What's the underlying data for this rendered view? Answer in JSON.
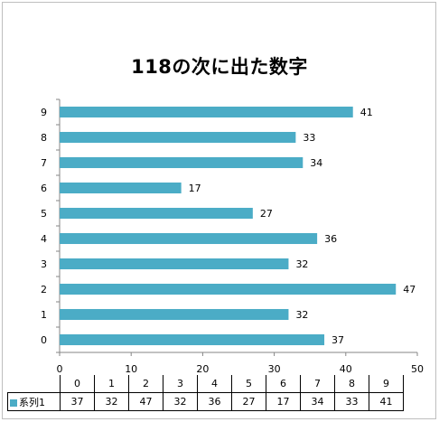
{
  "chart_data": {
    "type": "bar",
    "orientation": "horizontal",
    "title": "118の次に出た数字",
    "categories": [
      "0",
      "1",
      "2",
      "3",
      "4",
      "5",
      "6",
      "7",
      "8",
      "9"
    ],
    "series": [
      {
        "name": "系列1",
        "values": [
          37,
          32,
          47,
          32,
          36,
          27,
          17,
          34,
          33,
          41
        ],
        "color": "#4bacc6"
      }
    ],
    "xlim": [
      0,
      50
    ],
    "xticks": [
      0,
      10,
      20,
      30,
      40,
      50
    ],
    "grid": false,
    "data_labels": true,
    "data_table": true,
    "legend": "data-table"
  }
}
